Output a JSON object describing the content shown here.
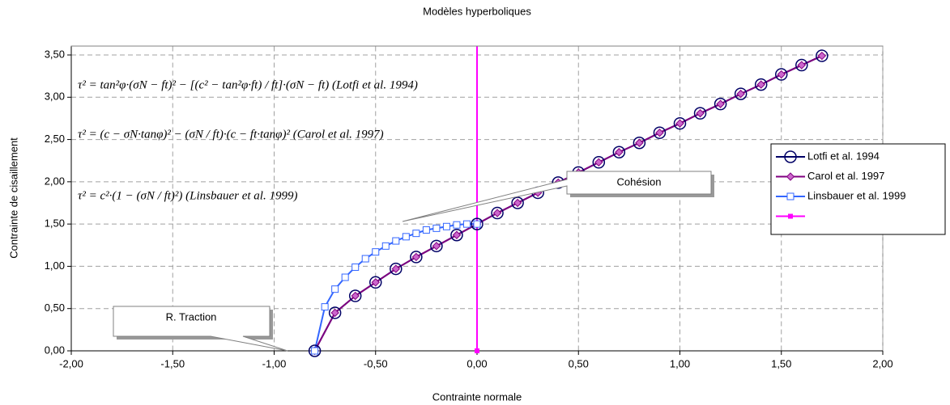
{
  "chart_data": {
    "type": "line",
    "title": "Modèles hyperboliques",
    "x_label": "Contrainte normale",
    "y_label": "Contrainte de cisaillement",
    "xlim": [
      -2,
      2
    ],
    "ylim": [
      0,
      3.6
    ],
    "xticks": [
      {
        "value": -2,
        "label": "-2,00"
      },
      {
        "value": -1.5,
        "label": "-1,50"
      },
      {
        "value": -1,
        "label": "-1,00"
      },
      {
        "value": -0.5,
        "label": "-0,50"
      },
      {
        "value": 0,
        "label": "0,00"
      },
      {
        "value": 0.5,
        "label": "0,50"
      },
      {
        "value": 1,
        "label": "1,00"
      },
      {
        "value": 1.5,
        "label": "1,50"
      },
      {
        "value": 2,
        "label": "2,00"
      }
    ],
    "yticks": [
      {
        "value": 0,
        "label": "0,00"
      },
      {
        "value": 0.5,
        "label": "0,50"
      },
      {
        "value": 1,
        "label": "1,00"
      },
      {
        "value": 1.5,
        "label": "1,50"
      },
      {
        "value": 2,
        "label": "2,00"
      },
      {
        "value": 2.5,
        "label": "2,50"
      },
      {
        "value": 3,
        "label": "3,00"
      },
      {
        "value": 3.5,
        "label": "3,50"
      }
    ],
    "grid": true,
    "legend": "right",
    "series": [
      {
        "name": "Lotfi et al. 1994",
        "color": "#000066",
        "marker": "circle",
        "x": [
          -0.8,
          -0.7,
          -0.6,
          -0.5,
          -0.4,
          -0.3,
          -0.2,
          -0.1,
          0,
          0.1,
          0.2,
          0.3,
          0.4,
          0.5,
          0.6,
          0.7,
          0.8,
          0.9,
          1.0,
          1.1,
          1.2,
          1.3,
          1.4,
          1.5,
          1.6,
          1.7
        ],
        "values": [
          0,
          0.45,
          0.65,
          0.81,
          0.97,
          1.11,
          1.24,
          1.37,
          1.5,
          1.63,
          1.75,
          1.87,
          1.99,
          2.11,
          2.23,
          2.35,
          2.46,
          2.58,
          2.69,
          2.81,
          2.92,
          3.04,
          3.15,
          3.27,
          3.38,
          3.49
        ]
      },
      {
        "name": "Carol et al. 1997",
        "color": "#800080",
        "marker": "diamond",
        "x": [
          -0.8,
          -0.7,
          -0.6,
          -0.5,
          -0.4,
          -0.3,
          -0.2,
          -0.1,
          0,
          0.1,
          0.2,
          0.3,
          0.4,
          0.5,
          0.6,
          0.7,
          0.8,
          0.9,
          1.0,
          1.1,
          1.2,
          1.3,
          1.4,
          1.5,
          1.6,
          1.7
        ],
        "values": [
          0,
          0.45,
          0.65,
          0.81,
          0.97,
          1.11,
          1.24,
          1.37,
          1.5,
          1.63,
          1.75,
          1.87,
          1.99,
          2.11,
          2.23,
          2.35,
          2.46,
          2.58,
          2.69,
          2.81,
          2.92,
          3.04,
          3.15,
          3.27,
          3.38,
          3.49
        ]
      },
      {
        "name": "Linsbauer et al. 1999",
        "color": "#3366ff",
        "marker": "square",
        "x": [
          -0.8,
          -0.75,
          -0.7,
          -0.65,
          -0.6,
          -0.55,
          -0.5,
          -0.45,
          -0.4,
          -0.35,
          -0.3,
          -0.25,
          -0.2,
          -0.15,
          -0.1,
          -0.05,
          0
        ],
        "values": [
          0,
          0.52,
          0.73,
          0.87,
          0.99,
          1.09,
          1.17,
          1.24,
          1.3,
          1.35,
          1.39,
          1.43,
          1.45,
          1.47,
          1.49,
          1.5,
          1.5
        ]
      },
      {
        "color": "#ff00ff",
        "marker": "dot",
        "x": [
          0,
          0
        ],
        "values": [
          0,
          3.6
        ]
      }
    ],
    "annotations": [
      {
        "text": "R. Traction"
      },
      {
        "text": "Cohésion"
      },
      {
        "text": "τ² = tan²φ·(σN − ft)² − [(c² − tan²φ·ft) / ft]·(σN − ft)   (Lotfi et al. 1994)"
      },
      {
        "text": "τ² = (c − σN·tanφ)² − (σN / ft)·(c − ft·tanφ)²   (Carol et al. 1997)"
      },
      {
        "text": "τ² = c²·(1 − (σN / ft)²)   (Linsbauer et al. 1999)"
      }
    ]
  }
}
